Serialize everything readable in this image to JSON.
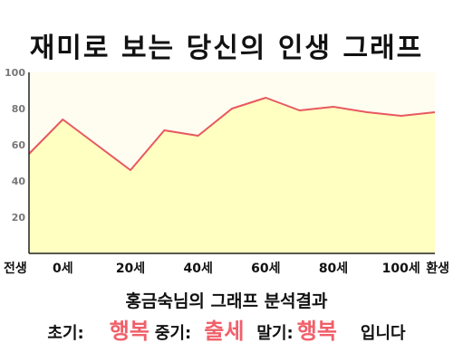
{
  "page_title": "재미로 보는 당신의 인생 그래프",
  "chart_data": {
    "type": "area",
    "title": "재미로 보는 당신의 인생 그래프",
    "x": [
      -10,
      0,
      10,
      20,
      30,
      40,
      50,
      60,
      70,
      80,
      90,
      100,
      110
    ],
    "values": [
      55,
      74,
      60,
      46,
      68,
      65,
      80,
      86,
      79,
      81,
      78,
      76,
      78
    ],
    "xticks": [
      {
        "x": -10,
        "label": "전생"
      },
      {
        "x": 0,
        "label": "0세"
      },
      {
        "x": 20,
        "label": "20세"
      },
      {
        "x": 40,
        "label": "40세"
      },
      {
        "x": 60,
        "label": "60세"
      },
      {
        "x": 80,
        "label": "80세"
      },
      {
        "x": 100,
        "label": "100세"
      },
      {
        "x": 110,
        "label": "환생"
      }
    ],
    "yticks": [
      20,
      40,
      60,
      80,
      100
    ],
    "ylim": [
      0,
      100
    ],
    "xlim": [
      -10,
      110
    ],
    "grid": false,
    "colors": {
      "fill": "#ffffc2",
      "line": "#e8585f",
      "plot_background": "#fffdf0",
      "axis": "#222222"
    }
  },
  "summary": {
    "heading": "홍금숙님의 그래프 분석결과",
    "early_label": "초기:",
    "early_value": "행복",
    "middle_label": "중기:",
    "middle_value": "출세",
    "late_label": "말기:",
    "late_value": "행복",
    "ending": "입니다"
  }
}
